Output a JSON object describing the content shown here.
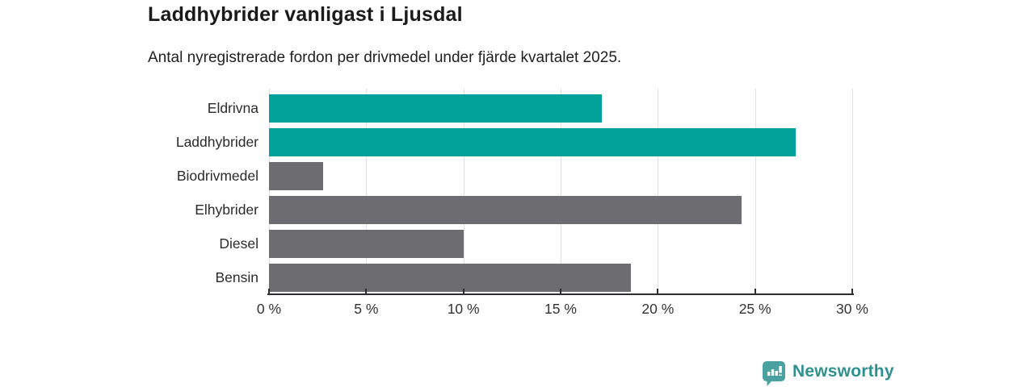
{
  "header": {
    "title": "Laddhybrider vanligast i Ljusdal",
    "subtitle": "Antal nyregistrerade fordon per drivmedel under fjärde kvartalet 2025."
  },
  "chart_data": {
    "type": "bar",
    "orientation": "horizontal",
    "title": "Laddhybrider vanligast i Ljusdal",
    "subtitle": "Antal nyregistrerade fordon per drivmedel under fjärde kvartalet 2025.",
    "categories": [
      "Eldrivna",
      "Laddhybrider",
      "Biodrivmedel",
      "Elhybrider",
      "Diesel",
      "Bensin"
    ],
    "values": [
      17.1,
      27.1,
      2.8,
      24.3,
      10.0,
      18.6
    ],
    "unit": "%",
    "xlim": [
      0,
      30
    ],
    "x_ticks": [
      0,
      5,
      10,
      15,
      20,
      25,
      30
    ],
    "x_tick_labels": [
      "0 %",
      "5 %",
      "10 %",
      "15 %",
      "20 %",
      "25 %",
      "30 %"
    ],
    "grid": true,
    "highlight_color": "#00a29a",
    "default_color": "#6c6c71",
    "bar_colors": [
      "#00a29a",
      "#00a29a",
      "#6c6c71",
      "#6c6c71",
      "#6c6c71",
      "#6c6c71"
    ]
  },
  "footer": {
    "brand": "Newsworthy",
    "logo_icon": "bar-chart-speech-bubble-icon",
    "brand_text_color": "#2f908e",
    "icon_color": "#4aa1a0"
  }
}
